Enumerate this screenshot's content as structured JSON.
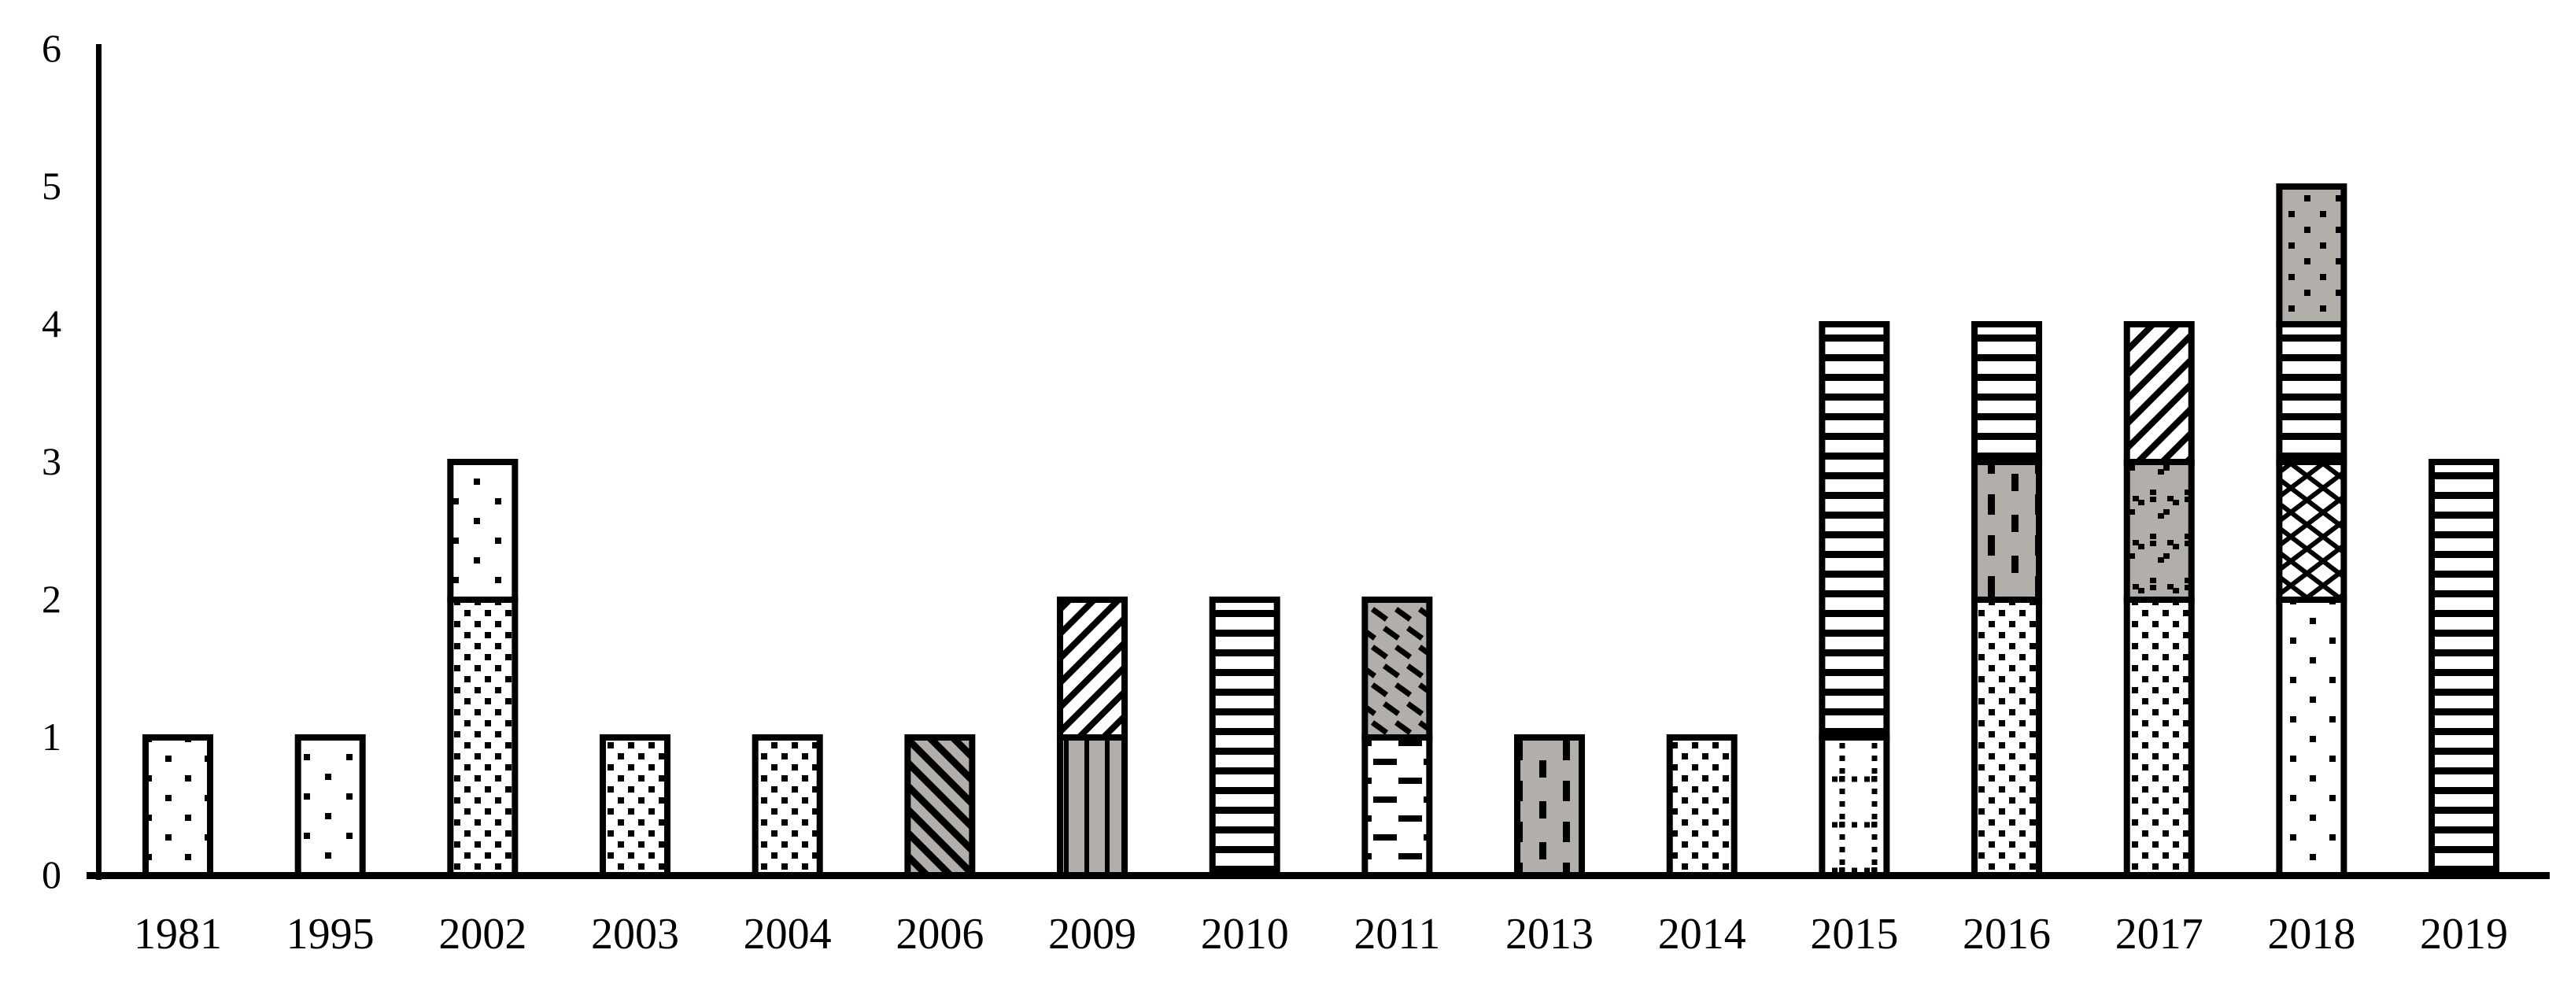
{
  "chart_data": {
    "type": "bar",
    "subtype": "stacked",
    "title": "",
    "xlabel": "",
    "ylabel": "",
    "ylim": [
      0,
      6
    ],
    "yticks": [
      0,
      1,
      2,
      3,
      4,
      5,
      6
    ],
    "grid": false,
    "legend": "none",
    "categories": [
      "1981",
      "1995",
      "2002",
      "2003",
      "2004",
      "2006",
      "2009",
      "2010",
      "2011",
      "2013",
      "2014",
      "2015",
      "2016",
      "2017",
      "2018",
      "2019"
    ],
    "totals": [
      1,
      1,
      3,
      1,
      1,
      1,
      2,
      2,
      2,
      1,
      1,
      4,
      4,
      4,
      5,
      3
    ],
    "bars": [
      {
        "category": "1981",
        "segments": [
          {
            "pattern": "dots-sparse",
            "value": 1
          }
        ]
      },
      {
        "category": "1995",
        "segments": [
          {
            "pattern": "dots-medium",
            "value": 1
          }
        ]
      },
      {
        "category": "2002",
        "segments": [
          {
            "pattern": "dots-dense",
            "value": 2
          },
          {
            "pattern": "dots-medium",
            "value": 1
          }
        ]
      },
      {
        "category": "2003",
        "segments": [
          {
            "pattern": "dots-dense",
            "value": 1
          }
        ]
      },
      {
        "category": "2004",
        "segments": [
          {
            "pattern": "dots-dense",
            "value": 1
          }
        ]
      },
      {
        "category": "2006",
        "segments": [
          {
            "pattern": "gray-diagonal-stripes",
            "value": 1
          }
        ]
      },
      {
        "category": "2009",
        "segments": [
          {
            "pattern": "gray-vertical-stripes",
            "value": 1
          },
          {
            "pattern": "white-diagonal-stripes",
            "value": 1
          }
        ]
      },
      {
        "category": "2010",
        "segments": [
          {
            "pattern": "horizontal-lines",
            "value": 2
          }
        ]
      },
      {
        "category": "2011",
        "segments": [
          {
            "pattern": "white-horizontal-dashes",
            "value": 1
          },
          {
            "pattern": "gray-diagonal-dashes",
            "value": 1
          }
        ]
      },
      {
        "category": "2013",
        "segments": [
          {
            "pattern": "gray-vertical-dashes",
            "value": 1
          }
        ]
      },
      {
        "category": "2014",
        "segments": [
          {
            "pattern": "dots-dense",
            "value": 1
          }
        ]
      },
      {
        "category": "2015",
        "segments": [
          {
            "pattern": "dotted-grid",
            "value": 1
          },
          {
            "pattern": "horizontal-lines",
            "value": 3
          }
        ]
      },
      {
        "category": "2016",
        "segments": [
          {
            "pattern": "dots-dense",
            "value": 2
          },
          {
            "pattern": "gray-vertical-dashes",
            "value": 1
          },
          {
            "pattern": "horizontal-lines",
            "value": 1
          }
        ]
      },
      {
        "category": "2017",
        "segments": [
          {
            "pattern": "dots-dense",
            "value": 2
          },
          {
            "pattern": "gray-speckle",
            "value": 1
          },
          {
            "pattern": "white-diagonal-stripes",
            "value": 1
          }
        ]
      },
      {
        "category": "2018",
        "segments": [
          {
            "pattern": "dots-sparse",
            "value": 2
          },
          {
            "pattern": "diamond-crosshatch",
            "value": 1
          },
          {
            "pattern": "horizontal-lines",
            "value": 1
          },
          {
            "pattern": "gray-dots",
            "value": 1
          }
        ]
      },
      {
        "category": "2019",
        "segments": [
          {
            "pattern": "horizontal-lines",
            "value": 3
          }
        ]
      }
    ],
    "colors": {
      "outline": "#000000",
      "background": "#ffffff",
      "gray_fill": "#b2aeaa"
    }
  }
}
